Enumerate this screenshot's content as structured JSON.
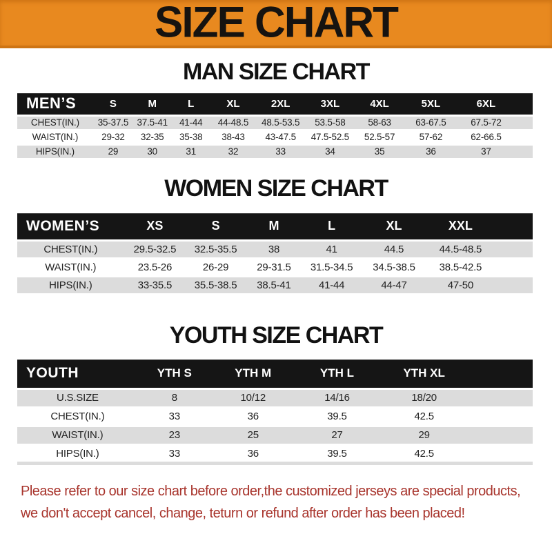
{
  "banner": {
    "title": "SIZE CHART"
  },
  "colors": {
    "banner_orange": "#E8891F",
    "header_bar_black": "#151515",
    "row_stripe_gray": "#DCDCDC",
    "notice_red": "#A8342C"
  },
  "sections": [
    {
      "id": "men",
      "heading": "MAN SIZE CHART",
      "table": {
        "header": [
          "MEN’S",
          "S",
          "M",
          "L",
          "XL",
          "2XL",
          "3XL",
          "4XL",
          "5XL",
          "6XL"
        ],
        "rows": [
          [
            "CHEST(IN.)",
            "35-37.5",
            "37.5-41",
            "41-44",
            "44-48.5",
            "48.5-53.5",
            "53.5-58",
            "58-63",
            "63-67.5",
            "67.5-72"
          ],
          [
            "WAIST(IN.)",
            "29-32",
            "32-35",
            "35-38",
            "38-43",
            "43-47.5",
            "47.5-52.5",
            "52.5-57",
            "57-62",
            "62-66.5"
          ],
          [
            "HIPS(IN.)",
            "29",
            "30",
            "31",
            "32",
            "33",
            "34",
            "35",
            "36",
            "37"
          ]
        ]
      }
    },
    {
      "id": "women",
      "heading": "WOMEN SIZE CHART",
      "table": {
        "header": [
          "WOMEN’S",
          "XS",
          "S",
          "M",
          "L",
          "XL",
          "XXL"
        ],
        "rows": [
          [
            "CHEST(IN.)",
            "29.5-32.5",
            "32.5-35.5",
            "38",
            "41",
            "44.5",
            "44.5-48.5"
          ],
          [
            "WAIST(IN.)",
            "23.5-26",
            "26-29",
            "29-31.5",
            "31.5-34.5",
            "34.5-38.5",
            "38.5-42.5"
          ],
          [
            "HIPS(IN.)",
            "33-35.5",
            "35.5-38.5",
            "38.5-41",
            "41-44",
            "44-47",
            "47-50"
          ]
        ]
      }
    },
    {
      "id": "youth",
      "heading": "YOUTH SIZE CHART",
      "table": {
        "header": [
          "YOUTH",
          "YTH S",
          "YTH M",
          "YTH L",
          "YTH XL"
        ],
        "rows": [
          [
            "U.S.SIZE",
            "8",
            "10/12",
            "14/16",
            "18/20"
          ],
          [
            "CHEST(IN.)",
            "33",
            "36",
            "39.5",
            "42.5"
          ],
          [
            "WAIST(IN.)",
            "23",
            "25",
            "27",
            "29"
          ],
          [
            "HIPS(IN.)",
            "33",
            "36",
            "39.5",
            "42.5"
          ]
        ]
      }
    }
  ],
  "footer": {
    "lines": [
      "Please refer to our size chart before order,the customized jerseys are special products,",
      "we don't accept cancel, change, teturn or refund after order has been placed!"
    ]
  }
}
